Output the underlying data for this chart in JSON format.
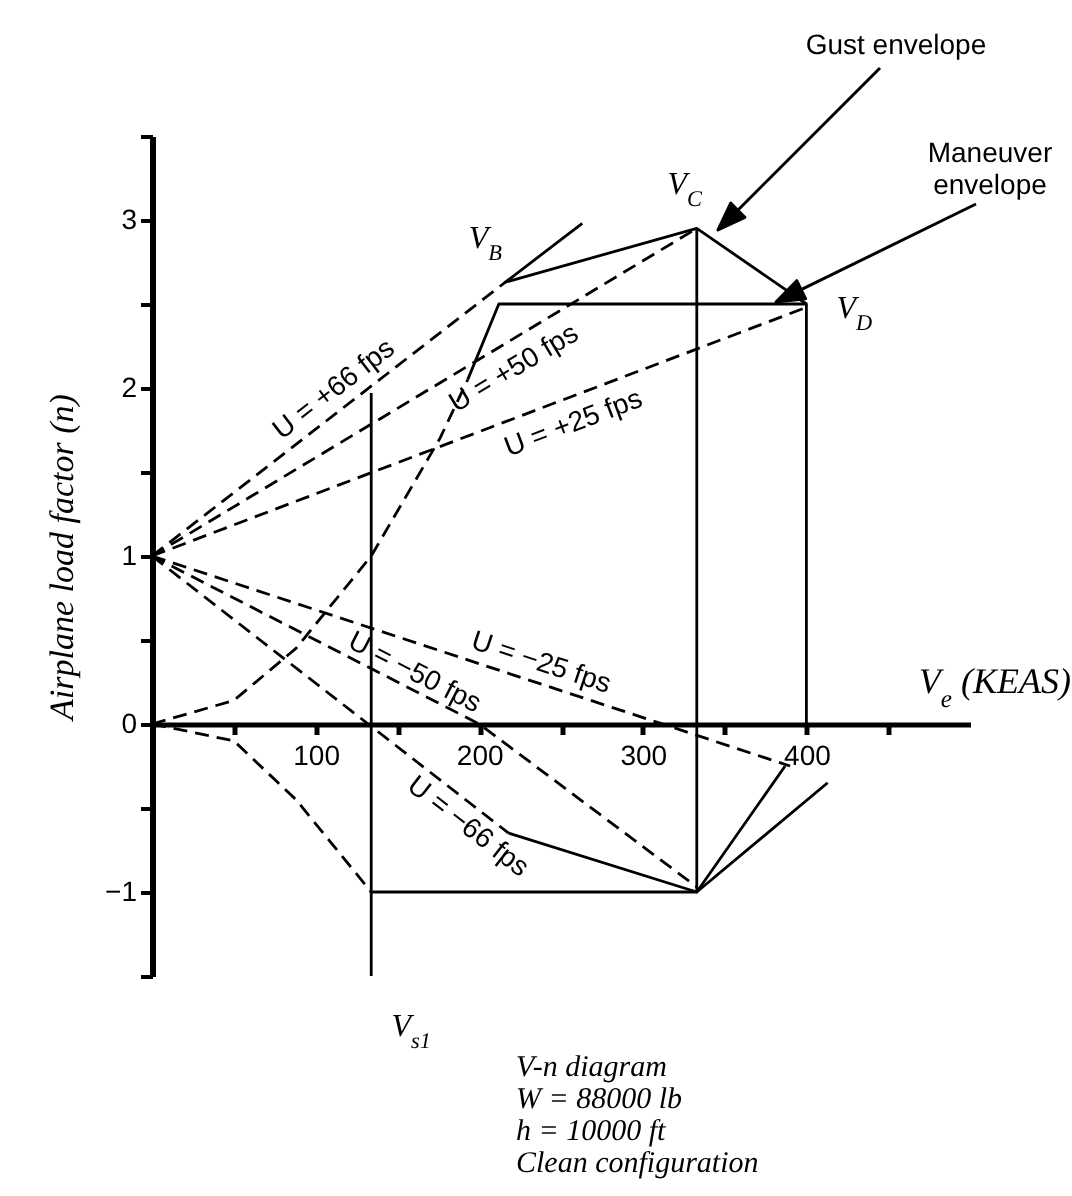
{
  "chart_data": {
    "type": "line",
    "xlabel": "V$_{e}$ (KEAS)",
    "ylabel": "Airplane load factor (n)",
    "xlim": [
      0,
      500
    ],
    "ylim": [
      -1.5,
      3.5
    ],
    "xticks": [
      {
        "value": 50,
        "label": null
      },
      100,
      {
        "value": 150,
        "label": null
      },
      200,
      {
        "value": 250,
        "label": null
      },
      300,
      {
        "value": 350,
        "label": null
      },
      400,
      {
        "value": 450,
        "label": null
      }
    ],
    "yticks": [
      {
        "value": -1.5,
        "label": null
      },
      -1,
      {
        "value": -0.5,
        "label": null
      },
      0,
      {
        "value": 0.5,
        "label": null
      },
      1,
      {
        "value": 1.5,
        "label": null
      },
      2,
      {
        "value": 2.5,
        "label": null
      },
      3,
      {
        "value": 3.5,
        "label": null
      }
    ],
    "annotations": [
      "Gust envelope",
      "Maneuver envelope",
      {
        "text": "V$_{B}$",
        "x": 216,
        "y": 2.63
      },
      {
        "text": "V$_{C}$",
        "x": 333,
        "y": 2.95
      },
      {
        "text": "V$_{D}$",
        "x": 400,
        "y": 2.5
      },
      {
        "text": "V$_{s1}$",
        "x": 134,
        "y": -1.5
      },
      "V-n diagram",
      "W = 88000 lb",
      "h = 10000 ft",
      "Clean configuration"
    ],
    "series": [
      {
        "name": "U = +66 fps",
        "type": "line",
        "line_style": "dashed",
        "color": "#000000",
        "x": [
          0,
          216
        ],
        "values": [
          1,
          2.63
        ]
      },
      {
        "name": "U = +50 fps",
        "type": "line",
        "line_style": "dashed",
        "color": "#000000",
        "x": [
          0,
          333
        ],
        "values": [
          1,
          2.95
        ]
      },
      {
        "name": "U = +25 fps",
        "type": "line",
        "line_style": "dashed",
        "color": "#000000",
        "x": [
          0,
          400
        ],
        "values": [
          1,
          2.48
        ]
      },
      {
        "name": "U = −25 fps",
        "type": "line",
        "line_style": "dashed",
        "color": "#000000",
        "x": [
          0,
          390
        ],
        "values": [
          1,
          -0.25
        ]
      },
      {
        "name": "U = −50 fps",
        "type": "line",
        "line_style": "dashed",
        "color": "#000000",
        "x": [
          0,
          200,
          333
        ],
        "values": [
          1,
          0,
          -0.97
        ]
      },
      {
        "name": "U = −66 fps",
        "type": "line",
        "line_style": "dashed",
        "color": "#000000",
        "x": [
          0,
          218
        ],
        "values": [
          1,
          -0.65
        ]
      },
      {
        "type": "line",
        "line_style": "solid",
        "color": "#000000",
        "x": [
          263,
          216,
          333,
          400
        ],
        "values": [
          2.98,
          2.63,
          2.95,
          2.5
        ]
      },
      {
        "type": "line",
        "line_style": "solid",
        "color": "#000000",
        "x": [
          218,
          333,
          413
        ],
        "values": [
          -0.65,
          -1,
          -0.35
        ]
      },
      {
        "type": "line",
        "line_style": "dashed",
        "color": "#000000",
        "x": [
          0,
          50,
          88,
          134,
          176,
          193
        ],
        "values": [
          0,
          0.14,
          0.45,
          1.0,
          1.7,
          2.05
        ]
      },
      {
        "type": "line",
        "line_style": "solid",
        "color": "#000000",
        "x": [
          193,
          212,
          400,
          400
        ],
        "values": [
          2.05,
          2.5,
          2.5,
          0
        ]
      },
      {
        "type": "line",
        "line_style": "dashed",
        "color": "#000000",
        "x": [
          0,
          50,
          88,
          134
        ],
        "values": [
          0,
          -0.1,
          -0.45,
          -1
        ]
      },
      {
        "type": "line",
        "line_style": "solid",
        "color": "#000000",
        "x": [
          134,
          333,
          387
        ],
        "values": [
          -1,
          -1,
          -0.25
        ]
      },
      {
        "type": "line",
        "line_style": "solid",
        "color": "#000000",
        "x": [
          134,
          134
        ],
        "values": [
          1.97,
          -1.5
        ]
      },
      {
        "type": "line",
        "line_style": "solid",
        "color": "#000000",
        "x": [
          333,
          333
        ],
        "values": [
          2.95,
          -1
        ]
      }
    ]
  }
}
